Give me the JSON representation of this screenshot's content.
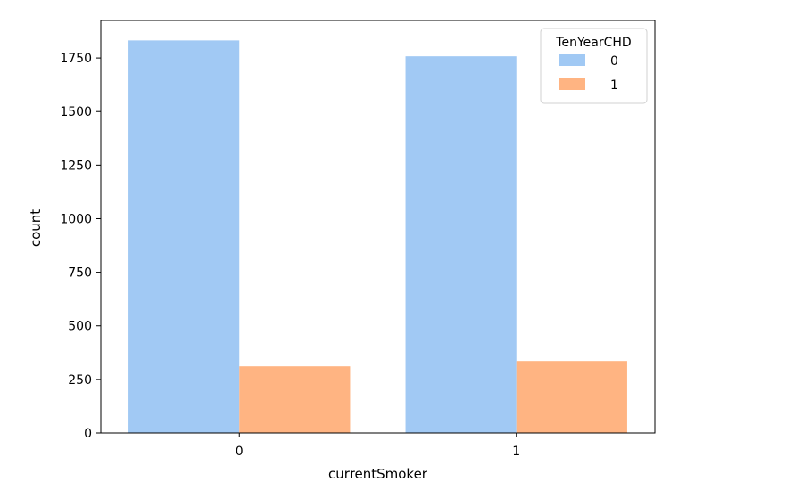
{
  "chart_data": {
    "type": "bar",
    "categories": [
      "0",
      "1"
    ],
    "series": [
      {
        "name": "0",
        "values": [
          1832,
          1758
        ],
        "color": "#a1c9f4"
      },
      {
        "name": "1",
        "values": [
          311,
          336
        ],
        "color": "#ffb482"
      }
    ],
    "xlabel": "currentSmoker",
    "ylabel": "count",
    "ylim": [
      0,
      1925
    ],
    "yticks": [
      0,
      250,
      500,
      750,
      1000,
      1250,
      1500,
      1750
    ],
    "grid": false,
    "legend": {
      "title": "TenYearCHD",
      "placement": "top-right"
    }
  }
}
